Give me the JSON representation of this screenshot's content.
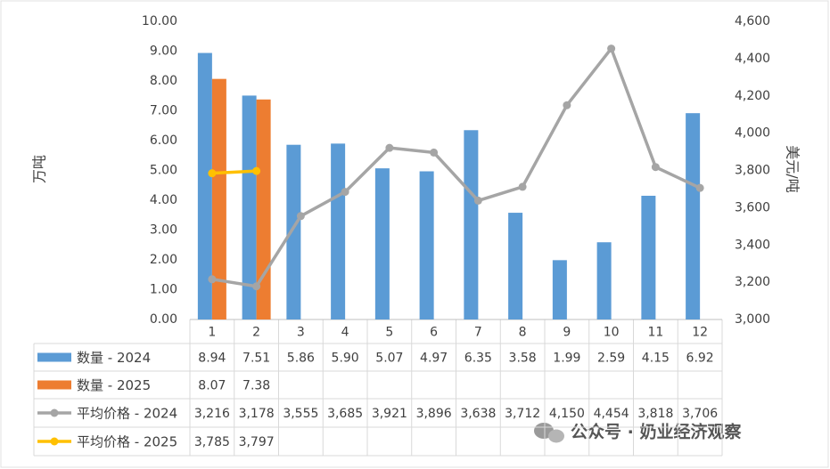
{
  "chart_data": {
    "type": "bar",
    "categories": [
      "1",
      "2",
      "3",
      "4",
      "5",
      "6",
      "7",
      "8",
      "9",
      "10",
      "11",
      "12"
    ],
    "ylabel": "万吨",
    "y2label": "美元/吨",
    "ylim": [
      0,
      10
    ],
    "yticks": [
      {
        "value": 0,
        "label": "0.00"
      },
      {
        "value": 1,
        "label": "1.00"
      },
      {
        "value": 2,
        "label": "2.00"
      },
      {
        "value": 3,
        "label": "3.00"
      },
      {
        "value": 4,
        "label": "4.00"
      },
      {
        "value": 5,
        "label": "5.00"
      },
      {
        "value": 6,
        "label": "6.00"
      },
      {
        "value": 7,
        "label": "7.00"
      },
      {
        "value": 8,
        "label": "8.00"
      },
      {
        "value": 9,
        "label": "9.00"
      },
      {
        "value": 10,
        "label": "10.00"
      }
    ],
    "y2lim": [
      3000,
      4600
    ],
    "y2ticks": [
      {
        "value": 3000,
        "label": "3,000"
      },
      {
        "value": 3200,
        "label": "3,200"
      },
      {
        "value": 3400,
        "label": "3,400"
      },
      {
        "value": 3600,
        "label": "3,600"
      },
      {
        "value": 3800,
        "label": "3,800"
      },
      {
        "value": 4000,
        "label": "4,000"
      },
      {
        "value": 4200,
        "label": "4,200"
      },
      {
        "value": 4400,
        "label": "4,400"
      },
      {
        "value": 4600,
        "label": "4,600"
      }
    ],
    "grid": false,
    "series": [
      {
        "name": "数量 - 2024",
        "type": "bar",
        "color": "#5b9bd5",
        "values": [
          8.94,
          7.51,
          5.86,
          5.9,
          5.07,
          4.97,
          6.35,
          3.58,
          1.99,
          2.59,
          4.15,
          6.92
        ],
        "value_labels": [
          "8.94",
          "7.51",
          "5.86",
          "5.90",
          "5.07",
          "4.97",
          "6.35",
          "3.58",
          "1.99",
          "2.59",
          "4.15",
          "6.92"
        ]
      },
      {
        "name": "数量 - 2025",
        "type": "bar",
        "color": "#ed7d31",
        "values": [
          8.07,
          7.38,
          null,
          null,
          null,
          null,
          null,
          null,
          null,
          null,
          null,
          null
        ],
        "value_labels": [
          "8.07",
          "7.38",
          null,
          null,
          null,
          null,
          null,
          null,
          null,
          null,
          null,
          null
        ]
      },
      {
        "name": "平均价格 - 2024",
        "type": "line",
        "axis": "y2",
        "color": "#a5a5a5",
        "values": [
          3216,
          3178,
          3555,
          3685,
          3921,
          3896,
          3638,
          3712,
          4150,
          4454,
          3818,
          3706
        ],
        "value_labels": [
          "3,216",
          "3,178",
          "3,555",
          "3,685",
          "3,921",
          "3,896",
          "3,638",
          "3,712",
          "4,150",
          "4,454",
          "3,818",
          "3,706"
        ]
      },
      {
        "name": "平均价格 - 2025",
        "type": "line",
        "axis": "y2",
        "color": "#ffc000",
        "values": [
          3785,
          3797,
          null,
          null,
          null,
          null,
          null,
          null,
          null,
          null,
          null,
          null
        ],
        "value_labels": [
          "3,785",
          "3,797",
          null,
          null,
          null,
          null,
          null,
          null,
          null,
          null,
          null,
          null
        ]
      }
    ],
    "watermark": "公众号 · 奶业经济观察"
  }
}
